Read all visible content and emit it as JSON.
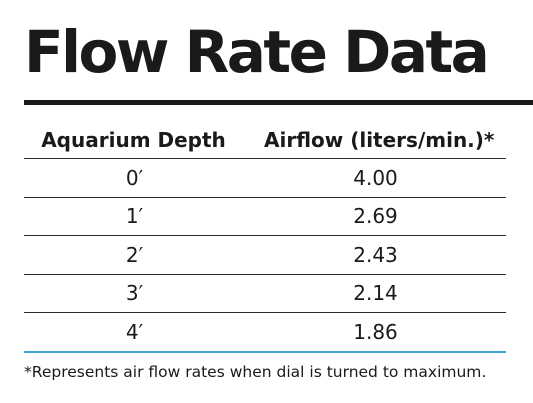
{
  "title": "Flow Rate Data",
  "table": {
    "headers": [
      "Aquarium Depth",
      "Airflow (liters/min.)*"
    ],
    "rows": [
      {
        "depth": "0′",
        "airflow": "4.00"
      },
      {
        "depth": "1′",
        "airflow": "2.69"
      },
      {
        "depth": "2′",
        "airflow": "2.43"
      },
      {
        "depth": "3′",
        "airflow": "2.14"
      },
      {
        "depth": "4′",
        "airflow": "1.86"
      }
    ]
  },
  "footnote": "*Represents air flow rates when dial is turned to maximum.",
  "colors": {
    "text": "#1a1a1a",
    "accent_rule": "#3aa6d6"
  }
}
